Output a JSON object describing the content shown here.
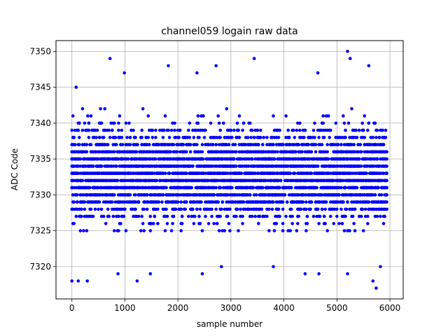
{
  "chart_data": {
    "type": "scatter",
    "title": "channel059 logain raw data",
    "xlabel": "sample number",
    "ylabel": "ADC Code",
    "xlim": [
      -300,
      6250
    ],
    "ylim": [
      7315.5,
      7351.5
    ],
    "xticks": [
      0,
      1000,
      2000,
      3000,
      4000,
      5000,
      6000
    ],
    "yticks": [
      7320,
      7325,
      7330,
      7335,
      7340,
      7345,
      7350
    ],
    "grid": true,
    "marker_color": "#0000ff",
    "series": [
      {
        "points_x_range": [
          0,
          5940
        ],
        "sample_step": 20,
        "typical_value_range": [
          7325,
          7342
        ],
        "center": 7333,
        "outliers": [
          {
            "x": 0,
            "y": 7318
          },
          {
            "x": 80,
            "y": 7345
          },
          {
            "x": 120,
            "y": 7318
          },
          {
            "x": 290,
            "y": 7318
          },
          {
            "x": 720,
            "y": 7349
          },
          {
            "x": 870,
            "y": 7319
          },
          {
            "x": 990,
            "y": 7347
          },
          {
            "x": 1230,
            "y": 7318
          },
          {
            "x": 1480,
            "y": 7319
          },
          {
            "x": 1820,
            "y": 7348
          },
          {
            "x": 2360,
            "y": 7347
          },
          {
            "x": 2460,
            "y": 7319
          },
          {
            "x": 2720,
            "y": 7348
          },
          {
            "x": 2820,
            "y": 7320
          },
          {
            "x": 3440,
            "y": 7349
          },
          {
            "x": 3800,
            "y": 7320
          },
          {
            "x": 4400,
            "y": 7319
          },
          {
            "x": 4640,
            "y": 7347
          },
          {
            "x": 4660,
            "y": 7319
          },
          {
            "x": 5200,
            "y": 7350
          },
          {
            "x": 5200,
            "y": 7319
          },
          {
            "x": 5250,
            "y": 7349
          },
          {
            "x": 5600,
            "y": 7348
          },
          {
            "x": 5680,
            "y": 7318
          },
          {
            "x": 5740,
            "y": 7317
          },
          {
            "x": 5820,
            "y": 7320
          }
        ]
      }
    ]
  }
}
